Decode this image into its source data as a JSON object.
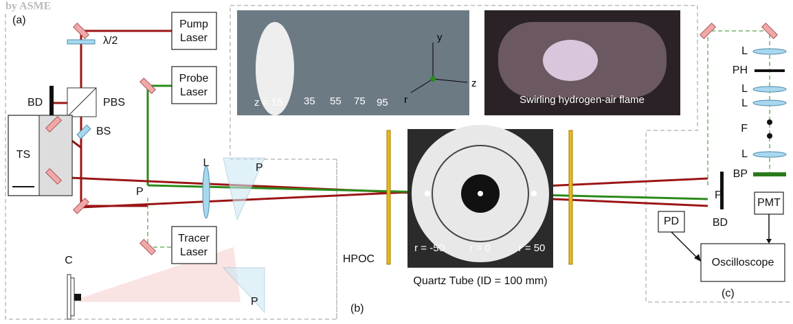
{
  "watermark": "by ASME",
  "panel_labels": {
    "a": "(a)",
    "b": "(b)",
    "c": "(c)"
  },
  "setup_a": {
    "pump_laser": [
      "Pump",
      "Laser"
    ],
    "half_wave_plate": "λ/2",
    "beam_dump": "BD",
    "pbs": "PBS",
    "probe_laser": [
      "Probe",
      "Laser"
    ],
    "beam_splitter": "BS",
    "translation_stage": "TS",
    "lens": "L",
    "prism_upper": "P",
    "prism_left": "P",
    "tracer_laser": [
      "Tracer",
      "Laser"
    ],
    "camera": "C",
    "prism_lower": "P"
  },
  "setup_b": {
    "z_positions": [
      "z = 15",
      "35",
      "55",
      "75",
      "95"
    ],
    "axes": {
      "y": "y",
      "z": "z",
      "r": "r"
    },
    "flame_caption": "Swirling hydrogen-air flame",
    "hpoc": "HPOC",
    "radial_positions": [
      "r = -50",
      "r = 0",
      "r = 50"
    ],
    "caption": "Quartz Tube (ID = 100 mm)"
  },
  "setup_c": {
    "optics": [
      "L",
      "PH",
      "L",
      "L",
      "F",
      "L",
      "BP"
    ],
    "prism": "P",
    "beam_dump": "BD",
    "pmt": "PMT",
    "pd": "PD",
    "oscilloscope": "Oscilloscope"
  }
}
